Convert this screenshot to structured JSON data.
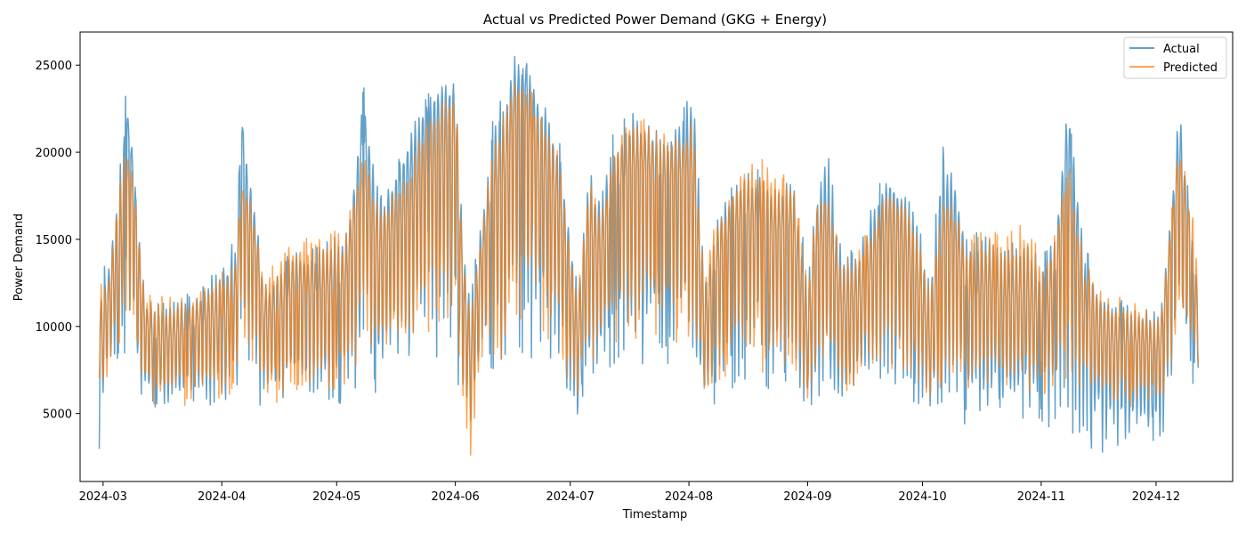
{
  "chart_data": {
    "type": "line",
    "title": "Actual vs Predicted Power Demand (GKG + Energy)",
    "xlabel": "Timestamp",
    "ylabel": "Power Demand",
    "x_type": "date",
    "xlim": [
      "2024-02-24",
      "2024-12-21"
    ],
    "ylim": [
      1100,
      26900
    ],
    "x_ticks": [
      "2024-03-01",
      "2024-04-01",
      "2024-05-01",
      "2024-06-01",
      "2024-07-01",
      "2024-08-01",
      "2024-09-01",
      "2024-10-01",
      "2024-11-01",
      "2024-12-01"
    ],
    "x_tick_labels": [
      "2024-03",
      "2024-04",
      "2024-05",
      "2024-06",
      "2024-07",
      "2024-08",
      "2024-09",
      "2024-10",
      "2024-11",
      "2024-12"
    ],
    "y_ticks": [
      5000,
      10000,
      15000,
      20000,
      25000
    ],
    "y_tick_labels": [
      "5000",
      "10000",
      "15000",
      "20000",
      "25000"
    ],
    "grid": false,
    "legend": {
      "position": "top-right",
      "entries": [
        "Actual",
        "Predicted"
      ]
    },
    "series": [
      {
        "name": "Actual",
        "color": "#1f77b4",
        "alpha": 0.7,
        "x": [
          "2024-02-29",
          "2024-03-01",
          "2024-03-02",
          "2024-03-06",
          "2024-03-07",
          "2024-03-09",
          "2024-03-10",
          "2024-03-12",
          "2024-03-16",
          "2024-03-20",
          "2024-03-25",
          "2024-03-28",
          "2024-04-02",
          "2024-04-05",
          "2024-04-06",
          "2024-04-08",
          "2024-04-10",
          "2024-04-12",
          "2024-04-16",
          "2024-04-20",
          "2024-04-25",
          "2024-04-30",
          "2024-05-03",
          "2024-05-06",
          "2024-05-08",
          "2024-05-12",
          "2024-05-16",
          "2024-05-20",
          "2024-05-24",
          "2024-05-28",
          "2024-06-01",
          "2024-06-03",
          "2024-06-05",
          "2024-06-08",
          "2024-06-11",
          "2024-06-14",
          "2024-06-16",
          "2024-06-19",
          "2024-06-22",
          "2024-06-25",
          "2024-06-28",
          "2024-07-01",
          "2024-07-03",
          "2024-07-06",
          "2024-07-09",
          "2024-07-12",
          "2024-07-16",
          "2024-07-20",
          "2024-07-25",
          "2024-07-30",
          "2024-08-02",
          "2024-08-05",
          "2024-08-08",
          "2024-08-12",
          "2024-08-16",
          "2024-08-20",
          "2024-08-24",
          "2024-08-28",
          "2024-09-01",
          "2024-09-03",
          "2024-09-06",
          "2024-09-10",
          "2024-09-14",
          "2024-09-18",
          "2024-09-22",
          "2024-09-26",
          "2024-09-30",
          "2024-10-03",
          "2024-10-06",
          "2024-10-09",
          "2024-10-13",
          "2024-10-18",
          "2024-10-23",
          "2024-10-28",
          "2024-11-02",
          "2024-11-05",
          "2024-11-08",
          "2024-11-12",
          "2024-11-16",
          "2024-11-20",
          "2024-11-24",
          "2024-11-28",
          "2024-12-02",
          "2024-12-05",
          "2024-12-07",
          "2024-12-10",
          "2024-12-12"
        ],
        "y": [
          10500,
          9000,
          11500,
          15000,
          22000,
          18500,
          13000,
          10000,
          9000,
          9500,
          10000,
          10500,
          10500,
          12500,
          21500,
          16000,
          14500,
          10500,
          11000,
          12500,
          12000,
          12500,
          12500,
          16500,
          21000,
          14000,
          16500,
          18500,
          20500,
          21500,
          21500,
          12500,
          8000,
          14500,
          18000,
          19000,
          22500,
          24000,
          21000,
          19000,
          17500,
          12500,
          9000,
          15500,
          14500,
          17500,
          19000,
          19500,
          18500,
          19000,
          19500,
          10000,
          13500,
          15500,
          16500,
          16000,
          15500,
          16000,
          9000,
          14500,
          16000,
          11000,
          11500,
          14000,
          16500,
          15000,
          12500,
          9000,
          15500,
          16000,
          11500,
          12500,
          11500,
          12000,
          10500,
          13500,
          20500,
          11500,
          10000,
          9000,
          9000,
          9000,
          8500,
          15000,
          20000,
          14500,
          10500
        ],
        "min": [
          2300,
          5000,
          6500,
          8000,
          8500,
          8000,
          5500,
          5000,
          4800,
          5000,
          5200,
          5000,
          4700,
          5200,
          6000,
          7000,
          5500,
          4300,
          4800,
          4500,
          4800,
          4900,
          5200,
          6500,
          6500,
          6000,
          7000,
          7500,
          8000,
          7800,
          8000,
          4000,
          3500,
          7000,
          6000,
          5500,
          8500,
          8000,
          8000,
          7500,
          7000,
          5500,
          4500,
          6000,
          7000,
          7500,
          7000,
          7200,
          7500,
          7000,
          7200,
          4000,
          5000,
          5500,
          6200,
          5800,
          6500,
          6200,
          4800,
          4500,
          5000,
          4200,
          5500,
          5500,
          6000,
          5800,
          4800,
          4600,
          4500,
          4200,
          4100,
          4200,
          4300,
          4200,
          3500,
          4500,
          2300,
          3000,
          2500,
          3000,
          2800,
          2600,
          2600,
          4500,
          6500,
          6500,
          6800
        ],
        "max": [
          11000,
          14500,
          12500,
          21500,
          23500,
          19500,
          18000,
          11800,
          11500,
          11800,
          12000,
          12500,
          14500,
          15000,
          23000,
          20000,
          17000,
          12500,
          13500,
          14500,
          14500,
          15500,
          15000,
          19500,
          24000,
          17500,
          18800,
          21500,
          23000,
          24500,
          24500,
          14500,
          12500,
          16500,
          22500,
          24000,
          25500,
          25500,
          24000,
          23000,
          21000,
          16000,
          12500,
          19500,
          17500,
          21000,
          22500,
          22000,
          21500,
          22000,
          24500,
          13500,
          16500,
          18000,
          19000,
          19000,
          18000,
          19000,
          13500,
          17500,
          21000,
          14500,
          14500,
          17500,
          19000,
          18500,
          16500,
          12500,
          21000,
          19500,
          15500,
          15500,
          15000,
          15500,
          14500,
          16500,
          23000,
          15000,
          12500,
          11500,
          11500,
          11500,
          11000,
          17000,
          23000,
          16500,
          12500
        ]
      },
      {
        "name": "Predicted",
        "color": "#ff7f0e",
        "alpha": 0.7,
        "x": [
          "2024-02-29",
          "2024-03-01",
          "2024-03-02",
          "2024-03-06",
          "2024-03-07",
          "2024-03-09",
          "2024-03-10",
          "2024-03-12",
          "2024-03-16",
          "2024-03-20",
          "2024-03-25",
          "2024-03-28",
          "2024-04-02",
          "2024-04-05",
          "2024-04-06",
          "2024-04-08",
          "2024-04-10",
          "2024-04-12",
          "2024-04-16",
          "2024-04-20",
          "2024-04-25",
          "2024-04-30",
          "2024-05-03",
          "2024-05-06",
          "2024-05-08",
          "2024-05-12",
          "2024-05-16",
          "2024-05-20",
          "2024-05-24",
          "2024-05-28",
          "2024-06-01",
          "2024-06-03",
          "2024-06-05",
          "2024-06-08",
          "2024-06-11",
          "2024-06-14",
          "2024-06-16",
          "2024-06-19",
          "2024-06-22",
          "2024-06-25",
          "2024-06-28",
          "2024-07-01",
          "2024-07-03",
          "2024-07-06",
          "2024-07-09",
          "2024-07-12",
          "2024-07-16",
          "2024-07-20",
          "2024-07-25",
          "2024-07-30",
          "2024-08-02",
          "2024-08-05",
          "2024-08-08",
          "2024-08-12",
          "2024-08-16",
          "2024-08-20",
          "2024-08-24",
          "2024-08-28",
          "2024-09-01",
          "2024-09-03",
          "2024-09-06",
          "2024-09-10",
          "2024-09-14",
          "2024-09-18",
          "2024-09-22",
          "2024-09-26",
          "2024-09-30",
          "2024-10-03",
          "2024-10-06",
          "2024-10-09",
          "2024-10-13",
          "2024-10-18",
          "2024-10-23",
          "2024-10-28",
          "2024-11-02",
          "2024-11-05",
          "2024-11-08",
          "2024-11-12",
          "2024-11-16",
          "2024-11-20",
          "2024-11-24",
          "2024-11-28",
          "2024-12-02",
          "2024-12-05",
          "2024-12-07",
          "2024-12-10",
          "2024-12-12"
        ],
        "y": [
          10000,
          9500,
          11000,
          15500,
          18500,
          17000,
          13000,
          10000,
          9000,
          9500,
          10000,
          10500,
          10500,
          12500,
          17500,
          15500,
          14000,
          10500,
          11000,
          12000,
          12000,
          12000,
          12000,
          16000,
          18000,
          14000,
          15500,
          16500,
          18500,
          19500,
          20500,
          12000,
          7500,
          14000,
          17500,
          18500,
          21500,
          22000,
          20000,
          18500,
          17000,
          12000,
          9500,
          15500,
          14000,
          17500,
          19000,
          19000,
          18000,
          18500,
          18500,
          10000,
          13500,
          15500,
          16500,
          16000,
          15500,
          15500,
          9000,
          14000,
          15500,
          11000,
          11500,
          13500,
          15500,
          14500,
          12500,
          9000,
          14500,
          15000,
          11500,
          12000,
          11000,
          11500,
          10500,
          13000,
          17500,
          11000,
          9500,
          9000,
          9000,
          9000,
          8500,
          14500,
          18500,
          14000,
          10000
        ],
        "min": [
          5500,
          6000,
          6500,
          9000,
          10000,
          9000,
          6500,
          5500,
          5200,
          5400,
          5500,
          5600,
          5500,
          5600,
          8000,
          7000,
          6000,
          5500,
          5500,
          5800,
          5800,
          5700,
          5500,
          6500,
          7500,
          6500,
          7500,
          8000,
          8500,
          9000,
          9500,
          4000,
          1700,
          7500,
          6500,
          6500,
          9500,
          9000,
          9000,
          8500,
          8000,
          6000,
          5500,
          7000,
          7500,
          8000,
          8500,
          8500,
          8500,
          8000,
          8000,
          5500,
          6000,
          6500,
          7000,
          6800,
          7000,
          7000,
          5500,
          5500,
          6000,
          5500,
          6000,
          6000,
          6500,
          6500,
          5800,
          5500,
          5500,
          6000,
          5500,
          5800,
          5800,
          5800,
          5600,
          5500,
          5800,
          5500,
          5500,
          5300,
          5300,
          5300,
          5000,
          6000,
          7500,
          7500,
          7500
        ],
        "max": [
          12000,
          13500,
          12000,
          20500,
          20500,
          19500,
          17500,
          11800,
          11800,
          11800,
          12000,
          12500,
          13500,
          14000,
          18500,
          18000,
          16000,
          12500,
          14500,
          15500,
          15000,
          16500,
          15500,
          18500,
          20500,
          17000,
          18000,
          19500,
          22000,
          23500,
          24500,
          14000,
          12000,
          16000,
          21000,
          23000,
          24500,
          24500,
          23000,
          21500,
          20000,
          15000,
          12500,
          19000,
          16500,
          20500,
          22500,
          22000,
          21500,
          21000,
          22500,
          13500,
          16500,
          18000,
          19500,
          20000,
          19000,
          19000,
          13000,
          17000,
          18500,
          14000,
          14500,
          16500,
          18500,
          18000,
          16000,
          12000,
          18500,
          17500,
          15000,
          16000,
          15500,
          16500,
          14000,
          16000,
          20000,
          14500,
          12500,
          12000,
          12000,
          11500,
          11000,
          16500,
          21500,
          17500,
          13500
        ]
      }
    ]
  }
}
